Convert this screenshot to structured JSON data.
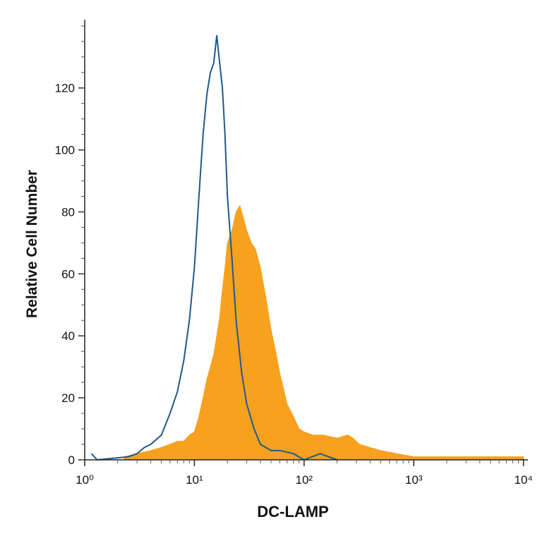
{
  "chart_data": {
    "type": "histogram-overlay",
    "x_label": "DC-LAMP",
    "y_label": "Relative Cell Number",
    "log_x": true,
    "xlim": [
      1,
      11000
    ],
    "xticks": [
      {
        "value": 1,
        "label": "10⁰"
      },
      {
        "value": 10,
        "label": "10¹"
      },
      {
        "value": 100,
        "label": "10²"
      },
      {
        "value": 1000,
        "label": "10³"
      },
      {
        "value": 10000,
        "label": "10⁴"
      }
    ],
    "ylim": [
      0,
      142
    ],
    "yticks": [
      0,
      20,
      40,
      60,
      80,
      100,
      120
    ],
    "series": [
      {
        "color": "#f7a11f",
        "fill": true,
        "x": [
          2.3,
          3,
          4,
          5,
          6,
          7,
          8,
          9,
          10,
          11,
          12,
          13,
          14,
          15,
          16,
          17,
          18,
          19,
          20,
          22,
          24,
          26,
          28,
          30,
          33,
          36,
          40,
          45,
          50,
          55,
          60,
          70,
          80,
          90,
          100,
          120,
          150,
          200,
          250,
          280,
          320,
          400,
          500,
          700,
          1000,
          1500,
          3000,
          10000
        ],
        "values": [
          1,
          2,
          3,
          4,
          5,
          6,
          6,
          8,
          9,
          14,
          20,
          26,
          30,
          34,
          40,
          46,
          55,
          62,
          70,
          74,
          80,
          82,
          78,
          74,
          70,
          68,
          62,
          52,
          42,
          35,
          28,
          18,
          14,
          10,
          9,
          8,
          8,
          7,
          8,
          7,
          5,
          4,
          3,
          2,
          1,
          1,
          1,
          1
        ]
      },
      {
        "color": "#1f5a8a",
        "fill": false,
        "x": [
          1.15,
          1.3,
          2.5,
          3,
          3.5,
          4,
          5,
          6,
          7,
          8,
          9,
          10,
          11,
          12,
          13,
          14,
          15,
          16,
          17,
          18,
          19,
          20,
          22,
          24,
          27,
          30,
          35,
          40,
          50,
          60,
          80,
          100,
          140,
          200
        ],
        "values": [
          2,
          0,
          1,
          2,
          4,
          5,
          8,
          15,
          22,
          32,
          45,
          62,
          85,
          105,
          118,
          125,
          128,
          137,
          128,
          120,
          105,
          85,
          65,
          45,
          28,
          18,
          10,
          5,
          3,
          3,
          2,
          0,
          2,
          0
        ]
      }
    ]
  }
}
